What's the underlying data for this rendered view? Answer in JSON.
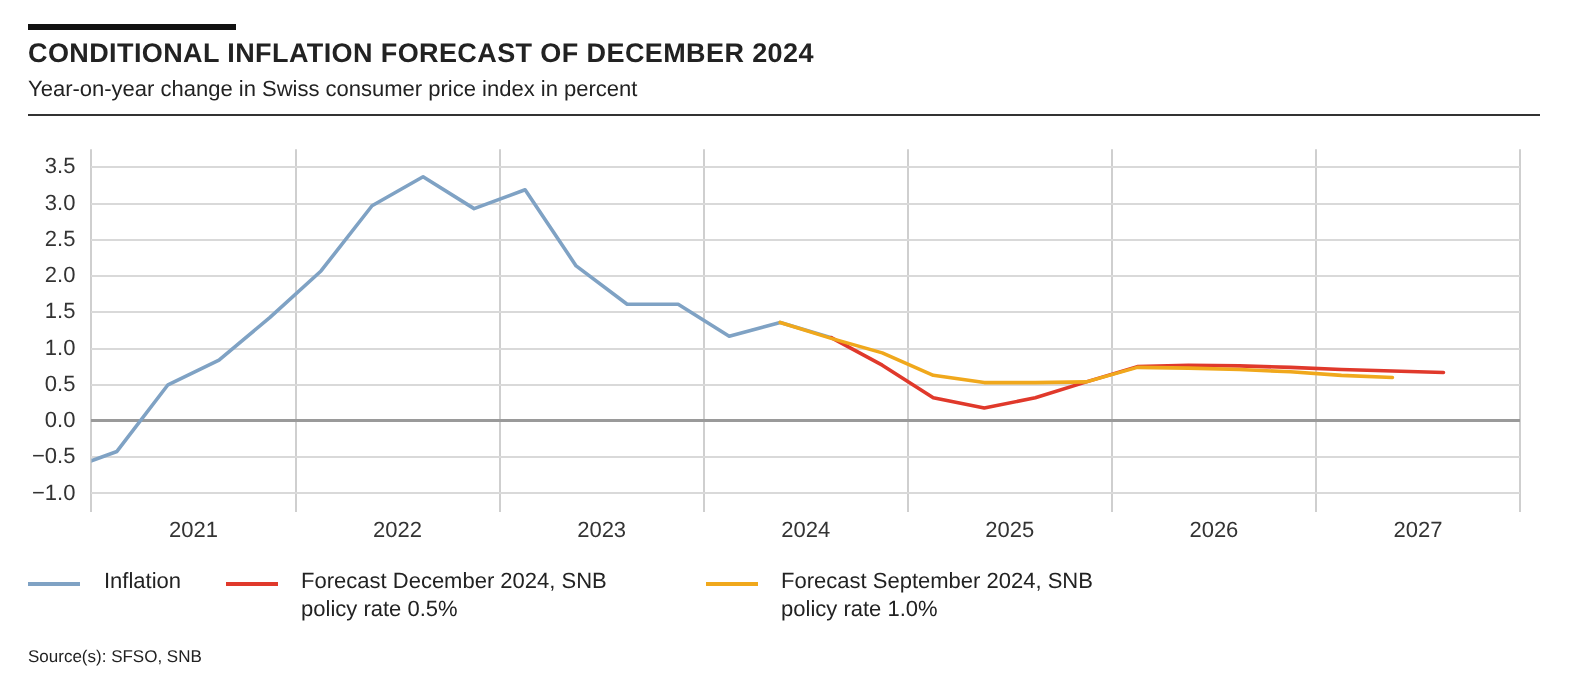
{
  "chart_data": {
    "type": "line",
    "title": "CONDITIONAL INFLATION FORECAST OF DECEMBER 2024",
    "subtitle": "Year-on-year change in Swiss consumer price index in percent",
    "annotations": [
      "Source(s): SFSO, SNB"
    ],
    "series": [
      {
        "name": "Inflation",
        "color": "#7fa2c4",
        "x": [
          2021.0,
          2021.125,
          2021.375,
          2021.625,
          2021.875,
          2022.125,
          2022.375,
          2022.625,
          2022.875,
          2023.125,
          2023.375,
          2023.625,
          2023.875,
          2024.125,
          2024.375,
          2024.625
        ],
        "values": [
          -0.55,
          -0.42,
          0.5,
          0.84,
          1.43,
          2.07,
          2.97,
          3.37,
          2.93,
          3.19,
          2.14,
          1.61,
          1.61,
          1.17,
          1.36,
          1.15
        ]
      },
      {
        "name": "Forecast December 2024, SNB policy rate 0.5%",
        "color": "#e0392b",
        "x": [
          2024.625,
          2024.875,
          2025.125,
          2025.375,
          2025.625,
          2025.875,
          2026.125,
          2026.375,
          2026.625,
          2026.875,
          2027.125,
          2027.375,
          2027.625
        ],
        "values": [
          1.15,
          0.77,
          0.32,
          0.18,
          0.32,
          0.54,
          0.75,
          0.77,
          0.76,
          0.74,
          0.71,
          0.69,
          0.67
        ]
      },
      {
        "name": "Forecast September 2024, SNB policy rate 1.0%",
        "color": "#f0a81c",
        "x": [
          2024.375,
          2024.625,
          2024.875,
          2025.125,
          2025.375,
          2025.625,
          2025.875,
          2026.125,
          2026.375,
          2026.625,
          2026.875,
          2027.125,
          2027.375
        ],
        "values": [
          1.36,
          1.14,
          0.94,
          0.63,
          0.53,
          0.53,
          0.54,
          0.74,
          0.73,
          0.71,
          0.68,
          0.63,
          0.6
        ]
      }
    ],
    "xlim": [
      2021,
      2028
    ],
    "xticks": [
      {
        "value": 2021,
        "label": null
      },
      {
        "value": 2021.5,
        "label": "2021"
      },
      {
        "value": 2022,
        "label": null
      },
      {
        "value": 2022.5,
        "label": "2022"
      },
      {
        "value": 2023,
        "label": null
      },
      {
        "value": 2023.5,
        "label": "2023"
      },
      {
        "value": 2024,
        "label": null
      },
      {
        "value": 2024.5,
        "label": "2024"
      },
      {
        "value": 2025,
        "label": null
      },
      {
        "value": 2025.5,
        "label": "2025"
      },
      {
        "value": 2026,
        "label": null
      },
      {
        "value": 2026.5,
        "label": "2026"
      },
      {
        "value": 2027,
        "label": null
      },
      {
        "value": 2027.5,
        "label": "2027"
      },
      {
        "value": 2028,
        "label": null
      }
    ],
    "ylim": [
      -1.25,
      3.75
    ],
    "yticks": [
      {
        "value": -1,
        "label": "−1.0"
      },
      {
        "value": -0.5,
        "label": "−0.5"
      },
      {
        "value": 0,
        "label": "0.0"
      },
      {
        "value": 0.5,
        "label": "0.5"
      },
      {
        "value": 1,
        "label": "1.0"
      },
      {
        "value": 1.5,
        "label": "1.5"
      },
      {
        "value": 2,
        "label": "2.0"
      },
      {
        "value": 2.5,
        "label": "2.5"
      },
      {
        "value": 3,
        "label": "3.0"
      },
      {
        "value": 3.5,
        "label": "3.5"
      }
    ],
    "grid": true,
    "legend": "bottom",
    "marker": "none",
    "line_style": "solid"
  }
}
